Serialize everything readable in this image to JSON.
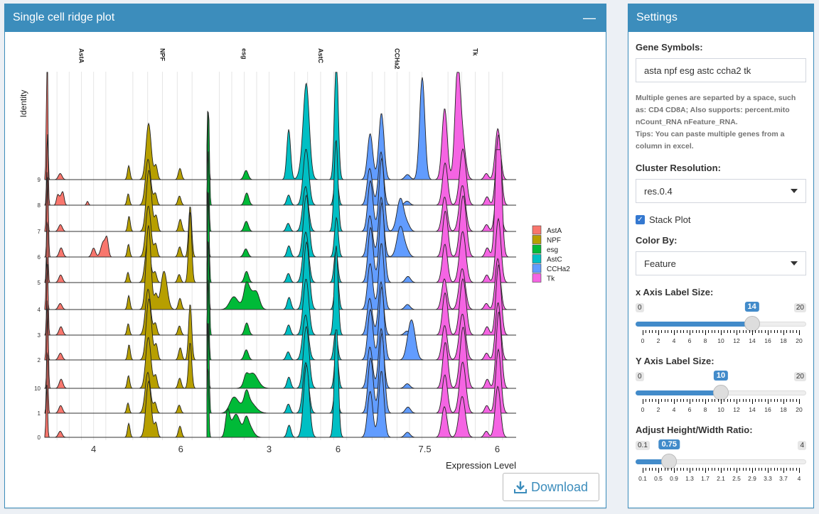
{
  "left_panel": {
    "title": "Single cell ridge plot",
    "collapse_icon": "minus-icon",
    "download_label": "Download",
    "download_icon": "download-icon"
  },
  "settings": {
    "title": "Settings",
    "gene_label": "Gene Symbols:",
    "gene_value": "asta npf esg astc ccha2 tk",
    "help_lines": [
      "Multiple genes are separted by a space, such",
      "as: CD4 CD8A; Also supports: percent.mito",
      "nCount_RNA nFeature_RNA.",
      "Tips: You can paste multiple genes from a",
      "column in excel."
    ],
    "cluster_label": "Cluster Resolution:",
    "cluster_value": "res.0.4",
    "stack_label": "Stack Plot",
    "stack_checked": true,
    "color_label": "Color By:",
    "color_value": "Feature",
    "sliders": [
      {
        "label": "x Axis Label Size:",
        "min": "0",
        "max": "20",
        "value": 14,
        "value_label": "14",
        "ticks": [
          "0",
          "2",
          "4",
          "6",
          "8",
          "10",
          "12",
          "14",
          "16",
          "18",
          "20"
        ]
      },
      {
        "label": "Y Axis Label Size:",
        "min": "0",
        "max": "20",
        "value": 10,
        "value_label": "10",
        "ticks": [
          "0",
          "2",
          "4",
          "6",
          "8",
          "10",
          "12",
          "14",
          "16",
          "18",
          "20"
        ]
      },
      {
        "label": "Adjust Height/Width Ratio:",
        "min": "0.1",
        "max": "4",
        "value": 0.75,
        "value_label": "0.75",
        "ticks": [
          "0.1",
          "0.5",
          "0.9",
          "1.3",
          "1.7",
          "2.1",
          "2.5",
          "2.9",
          "3.3",
          "3.7",
          "4"
        ]
      }
    ]
  },
  "chart_data": {
    "type": "ridge",
    "ylabel": "Identity",
    "xlabel": "Expression Level",
    "clusters": [
      "0",
      "1",
      "10",
      "2",
      "3",
      "4",
      "5",
      "6",
      "7",
      "8",
      "9"
    ],
    "legend": {
      "position": "right",
      "entries": [
        "AstA",
        "NPF",
        "esg",
        "AstC",
        "CCHa2",
        "Tk"
      ]
    },
    "genes": [
      {
        "name": "AstA",
        "color": "#F8766D",
        "xlim": [
          0,
          6
        ],
        "tick": {
          "value": 4,
          "label": "4"
        },
        "peaks": [
          [
            0.2,
            0.06,
            2.6
          ],
          [
            1.3,
            0.15,
            0.3
          ]
        ],
        "cluster_peaks": {
          "9": [
            [
              0.2,
              0.05,
              4.0
            ]
          ],
          "8": [
            [
              1.05,
              0.1,
              0.35
            ],
            [
              1.5,
              0.1,
              0.35
            ],
            [
              3.5,
              0.08,
              0.15
            ]
          ],
          "6": [
            [
              4.0,
              0.15,
              0.35
            ],
            [
              4.8,
              0.2,
              0.6
            ],
            [
              5.1,
              0.12,
              0.6
            ]
          ]
        }
      },
      {
        "name": "NPF",
        "color": "#B79F00",
        "xlim": [
          0,
          8.5
        ],
        "tick": {
          "value": 6,
          "label": "6"
        },
        "peaks": [
          [
            1.0,
            0.12,
            0.5
          ],
          [
            2.9,
            0.25,
            2.0
          ],
          [
            3.6,
            0.15,
            0.5
          ],
          [
            5.9,
            0.15,
            0.4
          ]
        ],
        "cluster_peaks": {
          "4": [
            [
              2.9,
              0.2,
              1.1
            ],
            [
              4.4,
              0.3,
              1.5
            ]
          ],
          "5": [
            [
              6.9,
              0.15,
              2.8
            ]
          ],
          "2": [
            [
              6.9,
              0.15,
              2.2
            ]
          ],
          "10": [
            [
              6.9,
              0.15,
              1.8
            ]
          ],
          "6": [
            [
              6.9,
              0.15,
              2.0
            ]
          ]
        }
      },
      {
        "name": "esg",
        "color": "#00BA38",
        "xlim": [
          0,
          3.6
        ],
        "tick": {
          "value": 3,
          "label": "3"
        },
        "peaks": [
          [
            0.06,
            0.04,
            3.2
          ],
          [
            1.9,
            0.1,
            0.4
          ]
        ],
        "cluster_peaks": {
          "4": [
            [
              1.3,
              0.2,
              0.5
            ],
            [
              2.0,
              0.2,
              0.8
            ],
            [
              2.4,
              0.15,
              0.6
            ]
          ],
          "1": [
            [
              1.3,
              0.2,
              0.6
            ],
            [
              2.0,
              0.3,
              0.5
            ]
          ],
          "0": [
            [
              1.0,
              0.1,
              1.0
            ],
            [
              1.4,
              0.2,
              0.9
            ],
            [
              2.0,
              0.2,
              0.5
            ]
          ],
          "10": [
            [
              2.2,
              0.25,
              0.6
            ]
          ]
        }
      },
      {
        "name": "AstC",
        "color": "#00BFC4",
        "xlim": [
          0,
          8.3
        ],
        "tick": {
          "value": 6,
          "label": "6"
        },
        "peaks": [
          [
            0.75,
            0.2,
            0.4
          ],
          [
            2.6,
            0.3,
            2.2
          ],
          [
            5.8,
            0.2,
            1.4
          ]
        ],
        "cluster_peaks": {
          "9": [
            [
              0.75,
              0.2,
              1.5
            ],
            [
              2.5,
              0.4,
              1.2
            ],
            [
              5.8,
              0.2,
              3.1
            ]
          ],
          "7": [
            [
              5.8,
              0.2,
              2.5
            ]
          ],
          "3": [
            [
              5.8,
              0.2,
              2.1
            ]
          ],
          "0": [
            [
              2.6,
              0.3,
              0.2
            ],
            [
              5.8,
              0.2,
              3.0
            ]
          ]
        }
      },
      {
        "name": "CCHa2",
        "color": "#619CFF",
        "xlim": [
          0,
          8.6
        ],
        "tick": {
          "value": 7.5,
          "label": "7.5"
        },
        "peaks": [
          [
            1.2,
            0.3,
            1.8
          ],
          [
            2.5,
            0.3,
            2.6
          ],
          [
            5.5,
            0.3,
            0.2
          ]
        ],
        "cluster_peaks": {
          "9": [
            [
              7.2,
              0.3,
              4.0
            ]
          ],
          "2": [
            [
              6.0,
              0.4,
              1.5
            ]
          ],
          "6": [
            [
              4.7,
              0.4,
              1.2
            ]
          ],
          "7": [
            [
              4.7,
              0.4,
              1.3
            ]
          ]
        }
      },
      {
        "name": "Tk",
        "color": "#F564E3",
        "xlim": [
          0,
          7.8
        ],
        "tick": {
          "value": 6,
          "label": "6"
        },
        "peaks": [
          [
            1.0,
            0.25,
            1.5
          ],
          [
            2.7,
            0.3,
            2.0
          ],
          [
            6.1,
            0.25,
            2.5
          ],
          [
            5.0,
            0.2,
            0.3
          ]
        ],
        "cluster_peaks": {
          "9": [
            [
              1.0,
              0.25,
              1.6
            ],
            [
              2.2,
              0.25,
              4.0
            ]
          ],
          "6": [
            [
              6.1,
              0.25,
              3.5
            ]
          ]
        }
      }
    ]
  }
}
